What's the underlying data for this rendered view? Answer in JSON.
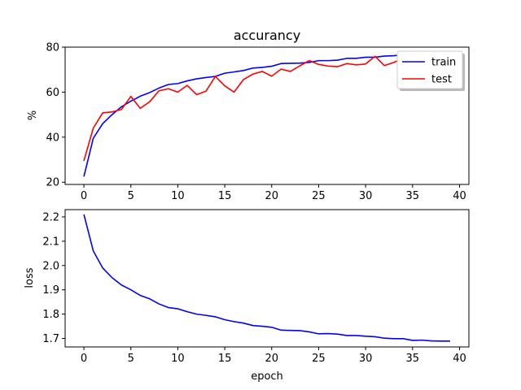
{
  "chart_data": [
    {
      "type": "line",
      "title": "accurancy",
      "xlabel": "",
      "ylabel": "%",
      "xlim": [
        -2,
        41
      ],
      "ylim": [
        19,
        80
      ],
      "xticks": [
        0,
        5,
        10,
        15,
        20,
        25,
        30,
        35,
        40
      ],
      "yticks": [
        20,
        40,
        60,
        80
      ],
      "legend": "top-right",
      "grid": false,
      "series": [
        {
          "name": "train",
          "color": "#0000ff",
          "x": [
            0,
            1,
            2,
            3,
            4,
            5,
            6,
            7,
            8,
            9,
            10,
            11,
            12,
            13,
            14,
            15,
            16,
            17,
            18,
            19,
            20,
            21,
            22,
            23,
            24,
            25,
            26,
            27,
            28,
            29,
            30,
            31,
            32,
            33,
            34,
            35,
            36,
            37,
            38,
            39
          ],
          "values": [
            22.5,
            39.5,
            46.0,
            50.0,
            53.5,
            56.0,
            58.2,
            59.8,
            61.8,
            63.4,
            63.8,
            65.0,
            65.9,
            66.5,
            67.0,
            68.4,
            69.0,
            69.6,
            70.7,
            71.0,
            71.5,
            72.7,
            72.8,
            72.9,
            73.2,
            74.0,
            74.0,
            74.2,
            75.0,
            75.0,
            75.5,
            75.5,
            76.0,
            76.2,
            76.5,
            76.7,
            76.9,
            77.1,
            77.3,
            77.5
          ]
        },
        {
          "name": "test",
          "color": "#ff0000",
          "x": [
            0,
            1,
            2,
            3,
            4,
            5,
            6,
            7,
            8,
            9,
            10,
            11,
            12,
            13,
            14,
            15,
            16,
            17,
            18,
            19,
            20,
            21,
            22,
            23,
            24,
            25,
            26,
            27,
            28,
            29,
            30,
            31,
            32,
            33,
            34,
            35,
            36,
            37,
            38,
            39
          ],
          "values": [
            29.5,
            44.0,
            50.8,
            51.2,
            52.3,
            58.1,
            52.8,
            55.7,
            60.6,
            61.5,
            60.0,
            63.0,
            58.9,
            60.4,
            67.0,
            62.8,
            60.0,
            65.6,
            68.0,
            69.2,
            67.1,
            70.2,
            69.2,
            71.7,
            74.0,
            72.3,
            71.6,
            71.3,
            72.7,
            72.1,
            72.5,
            75.9,
            71.8,
            73.2,
            75.0,
            76.0,
            76.5,
            76.8,
            77.0,
            77.2
          ]
        }
      ]
    },
    {
      "type": "line",
      "title": "",
      "xlabel": "epoch",
      "ylabel": "loss",
      "xlim": [
        -2,
        41
      ],
      "ylim": [
        1.665,
        2.23
      ],
      "xticks": [
        0,
        5,
        10,
        15,
        20,
        25,
        30,
        35,
        40
      ],
      "yticks": [
        1.7,
        1.8,
        1.9,
        2.0,
        2.1,
        2.2
      ],
      "grid": false,
      "series": [
        {
          "color": "#0000ff",
          "x": [
            0,
            1,
            2,
            3,
            4,
            5,
            6,
            7,
            8,
            9,
            10,
            11,
            12,
            13,
            14,
            15,
            16,
            17,
            18,
            19,
            20,
            21,
            22,
            23,
            24,
            25,
            26,
            27,
            28,
            29,
            30,
            31,
            32,
            33,
            34,
            35,
            36,
            37,
            38,
            39
          ],
          "values": [
            2.21,
            2.06,
            1.99,
            1.95,
            1.92,
            1.9,
            1.877,
            1.863,
            1.842,
            1.827,
            1.822,
            1.81,
            1.8,
            1.795,
            1.789,
            1.777,
            1.769,
            1.763,
            1.753,
            1.75,
            1.746,
            1.734,
            1.733,
            1.732,
            1.727,
            1.719,
            1.72,
            1.718,
            1.712,
            1.712,
            1.709,
            1.707,
            1.701,
            1.699,
            1.699,
            1.692,
            1.693,
            1.69,
            1.689,
            1.689
          ]
        }
      ]
    }
  ]
}
